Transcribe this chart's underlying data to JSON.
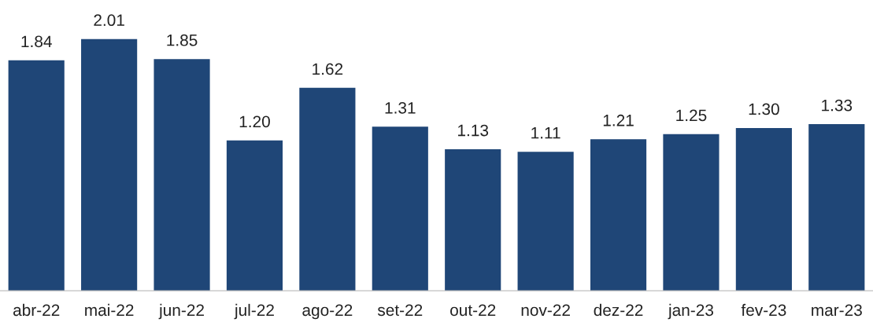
{
  "chart_data": {
    "type": "bar",
    "categories": [
      "abr-22",
      "mai-22",
      "jun-22",
      "jul-22",
      "ago-22",
      "set-22",
      "out-22",
      "nov-22",
      "dez-22",
      "jan-23",
      "fev-23",
      "mar-23"
    ],
    "values": [
      1.84,
      2.01,
      1.85,
      1.2,
      1.62,
      1.31,
      1.13,
      1.11,
      1.21,
      1.25,
      1.3,
      1.33
    ],
    "value_labels": [
      "1.84",
      "2.01",
      "1.85",
      "1.20",
      "1.62",
      "1.31",
      "1.13",
      "1.11",
      "1.21",
      "1.25",
      "1.30",
      "1.33"
    ],
    "color": "#1f4677",
    "grid": false,
    "legend": false
  }
}
